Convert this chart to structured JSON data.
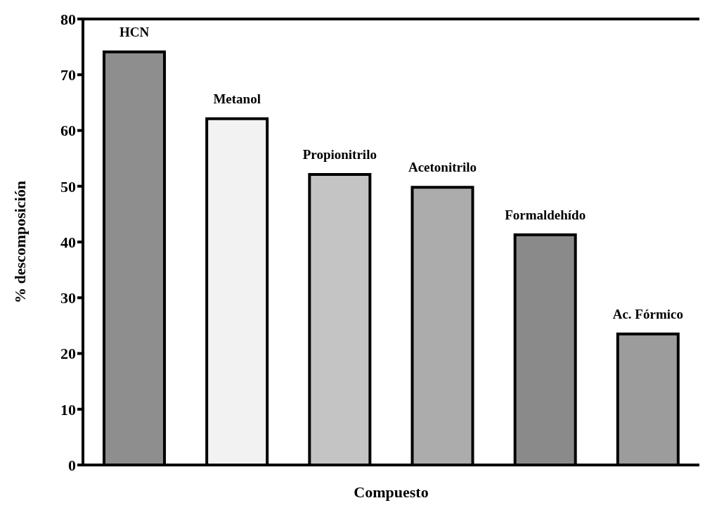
{
  "chart_data": {
    "type": "bar",
    "xlabel": "Compuesto",
    "ylabel": "% descomposición",
    "categories": [
      "HCN",
      "Metanol",
      "Propionitrilo",
      "Acetonitrilo",
      "Formaldehído",
      "Ac. Fórmico"
    ],
    "values": [
      74.1,
      62.1,
      52.1,
      49.8,
      41.3,
      23.5
    ],
    "colors": [
      "#8e8e8e",
      "#f2f2f2",
      "#c4c4c4",
      "#acacac",
      "#8a8a8a",
      "#9c9c9c"
    ],
    "ylim": [
      0,
      80
    ],
    "yticks": [
      0,
      10,
      20,
      30,
      40,
      50,
      60,
      70,
      80
    ],
    "grid": false
  }
}
